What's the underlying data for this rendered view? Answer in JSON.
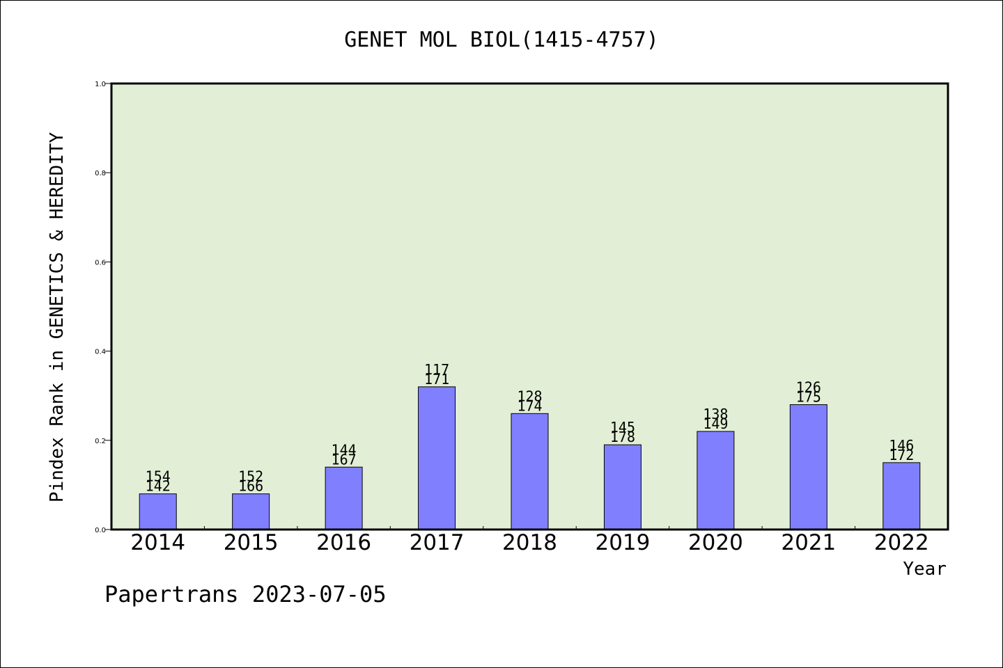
{
  "chart_data": {
    "type": "bar",
    "title": "GENET MOL BIOL(1415-4757)",
    "xlabel": "Year",
    "ylabel": "Pindex Rank in GENETICS & HEREDITY",
    "ylim": [
      0,
      1.0
    ],
    "yticks": [
      "0.0",
      "0.2",
      "0.4",
      "0.6",
      "0.8",
      "1.0"
    ],
    "grid": false,
    "categories": [
      "2014",
      "2015",
      "2016",
      "2017",
      "2018",
      "2019",
      "2020",
      "2021",
      "2022"
    ],
    "values": [
      0.08,
      0.08,
      0.14,
      0.32,
      0.26,
      0.19,
      0.22,
      0.28,
      0.15
    ],
    "labels_top": [
      "154",
      "152",
      "144",
      "117",
      "128",
      "145",
      "138",
      "126",
      "146"
    ],
    "labels_bottom": [
      "142",
      "166",
      "167",
      "171",
      "174",
      "178",
      "149",
      "175",
      "172"
    ],
    "colors": {
      "plot_bg": "#e2efd6",
      "bar": "#8080ff"
    }
  },
  "footer": "Papertrans 2023-07-05"
}
